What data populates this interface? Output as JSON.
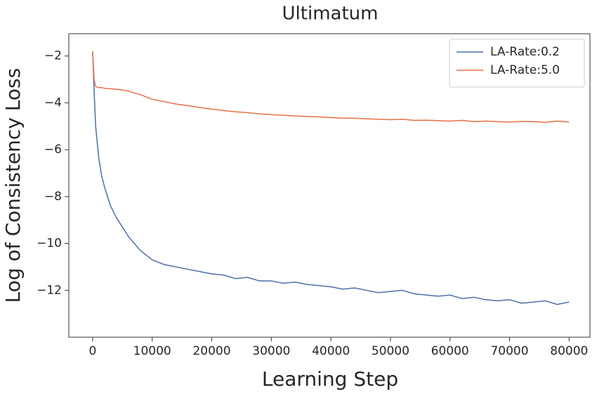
{
  "chart_data": {
    "type": "line",
    "title": "Ultimatum",
    "xlabel": "Learning Step",
    "ylabel": "Log of Consistency Loss",
    "x": [
      0,
      250,
      500,
      1000,
      1500,
      2000,
      3000,
      4000,
      5000,
      6000,
      7000,
      8000,
      9000,
      10000,
      12000,
      14000,
      16000,
      18000,
      20000,
      22000,
      24000,
      26000,
      28000,
      30000,
      32000,
      34000,
      36000,
      38000,
      40000,
      42000,
      44000,
      46000,
      48000,
      50000,
      52000,
      54000,
      56000,
      58000,
      60000,
      62000,
      64000,
      66000,
      68000,
      70000,
      72000,
      74000,
      76000,
      78000,
      80000
    ],
    "series": [
      {
        "name": "LA-Rate:0.2",
        "color": "#4c6fa8",
        "values": [
          -1.8,
          -3.5,
          -5.0,
          -6.3,
          -7.1,
          -7.6,
          -8.4,
          -8.9,
          -9.3,
          -9.7,
          -10.0,
          -10.3,
          -10.5,
          -10.7,
          -10.9,
          -11.0,
          -11.1,
          -11.2,
          -11.3,
          -11.35,
          -11.5,
          -11.45,
          -11.6,
          -11.6,
          -11.7,
          -11.65,
          -11.75,
          -11.8,
          -11.85,
          -11.95,
          -11.9,
          -12.0,
          -12.1,
          -12.05,
          -12.0,
          -12.15,
          -12.2,
          -12.25,
          -12.2,
          -12.35,
          -12.3,
          -12.4,
          -12.45,
          -12.4,
          -12.55,
          -12.5,
          -12.45,
          -12.6,
          -12.5
        ]
      },
      {
        "name": "LA-Rate:5.0",
        "color": "#e8704a",
        "values": [
          -1.8,
          -3.0,
          -3.3,
          -3.35,
          -3.35,
          -3.38,
          -3.4,
          -3.42,
          -3.45,
          -3.5,
          -3.58,
          -3.65,
          -3.75,
          -3.85,
          -3.95,
          -4.05,
          -4.12,
          -4.2,
          -4.27,
          -4.33,
          -4.38,
          -4.42,
          -4.47,
          -4.5,
          -4.53,
          -4.56,
          -4.58,
          -4.6,
          -4.63,
          -4.65,
          -4.66,
          -4.68,
          -4.7,
          -4.72,
          -4.7,
          -4.75,
          -4.74,
          -4.76,
          -4.78,
          -4.75,
          -4.8,
          -4.78,
          -4.8,
          -4.82,
          -4.79,
          -4.8,
          -4.83,
          -4.78,
          -4.82
        ]
      }
    ],
    "xlim": [
      -4000,
      83500
    ],
    "ylim": [
      -14.0,
      -1.05
    ],
    "xticks": [
      0,
      10000,
      20000,
      30000,
      40000,
      50000,
      60000,
      70000,
      80000
    ],
    "yticks": [
      {
        "value": -2,
        "label": "−2"
      },
      {
        "value": -4,
        "label": "−4"
      },
      {
        "value": -6,
        "label": "−6"
      },
      {
        "value": -8,
        "label": "−8"
      },
      {
        "value": -10,
        "label": "−10"
      },
      {
        "value": -12,
        "label": "−12"
      }
    ],
    "legend": "upper right",
    "grid": false
  }
}
